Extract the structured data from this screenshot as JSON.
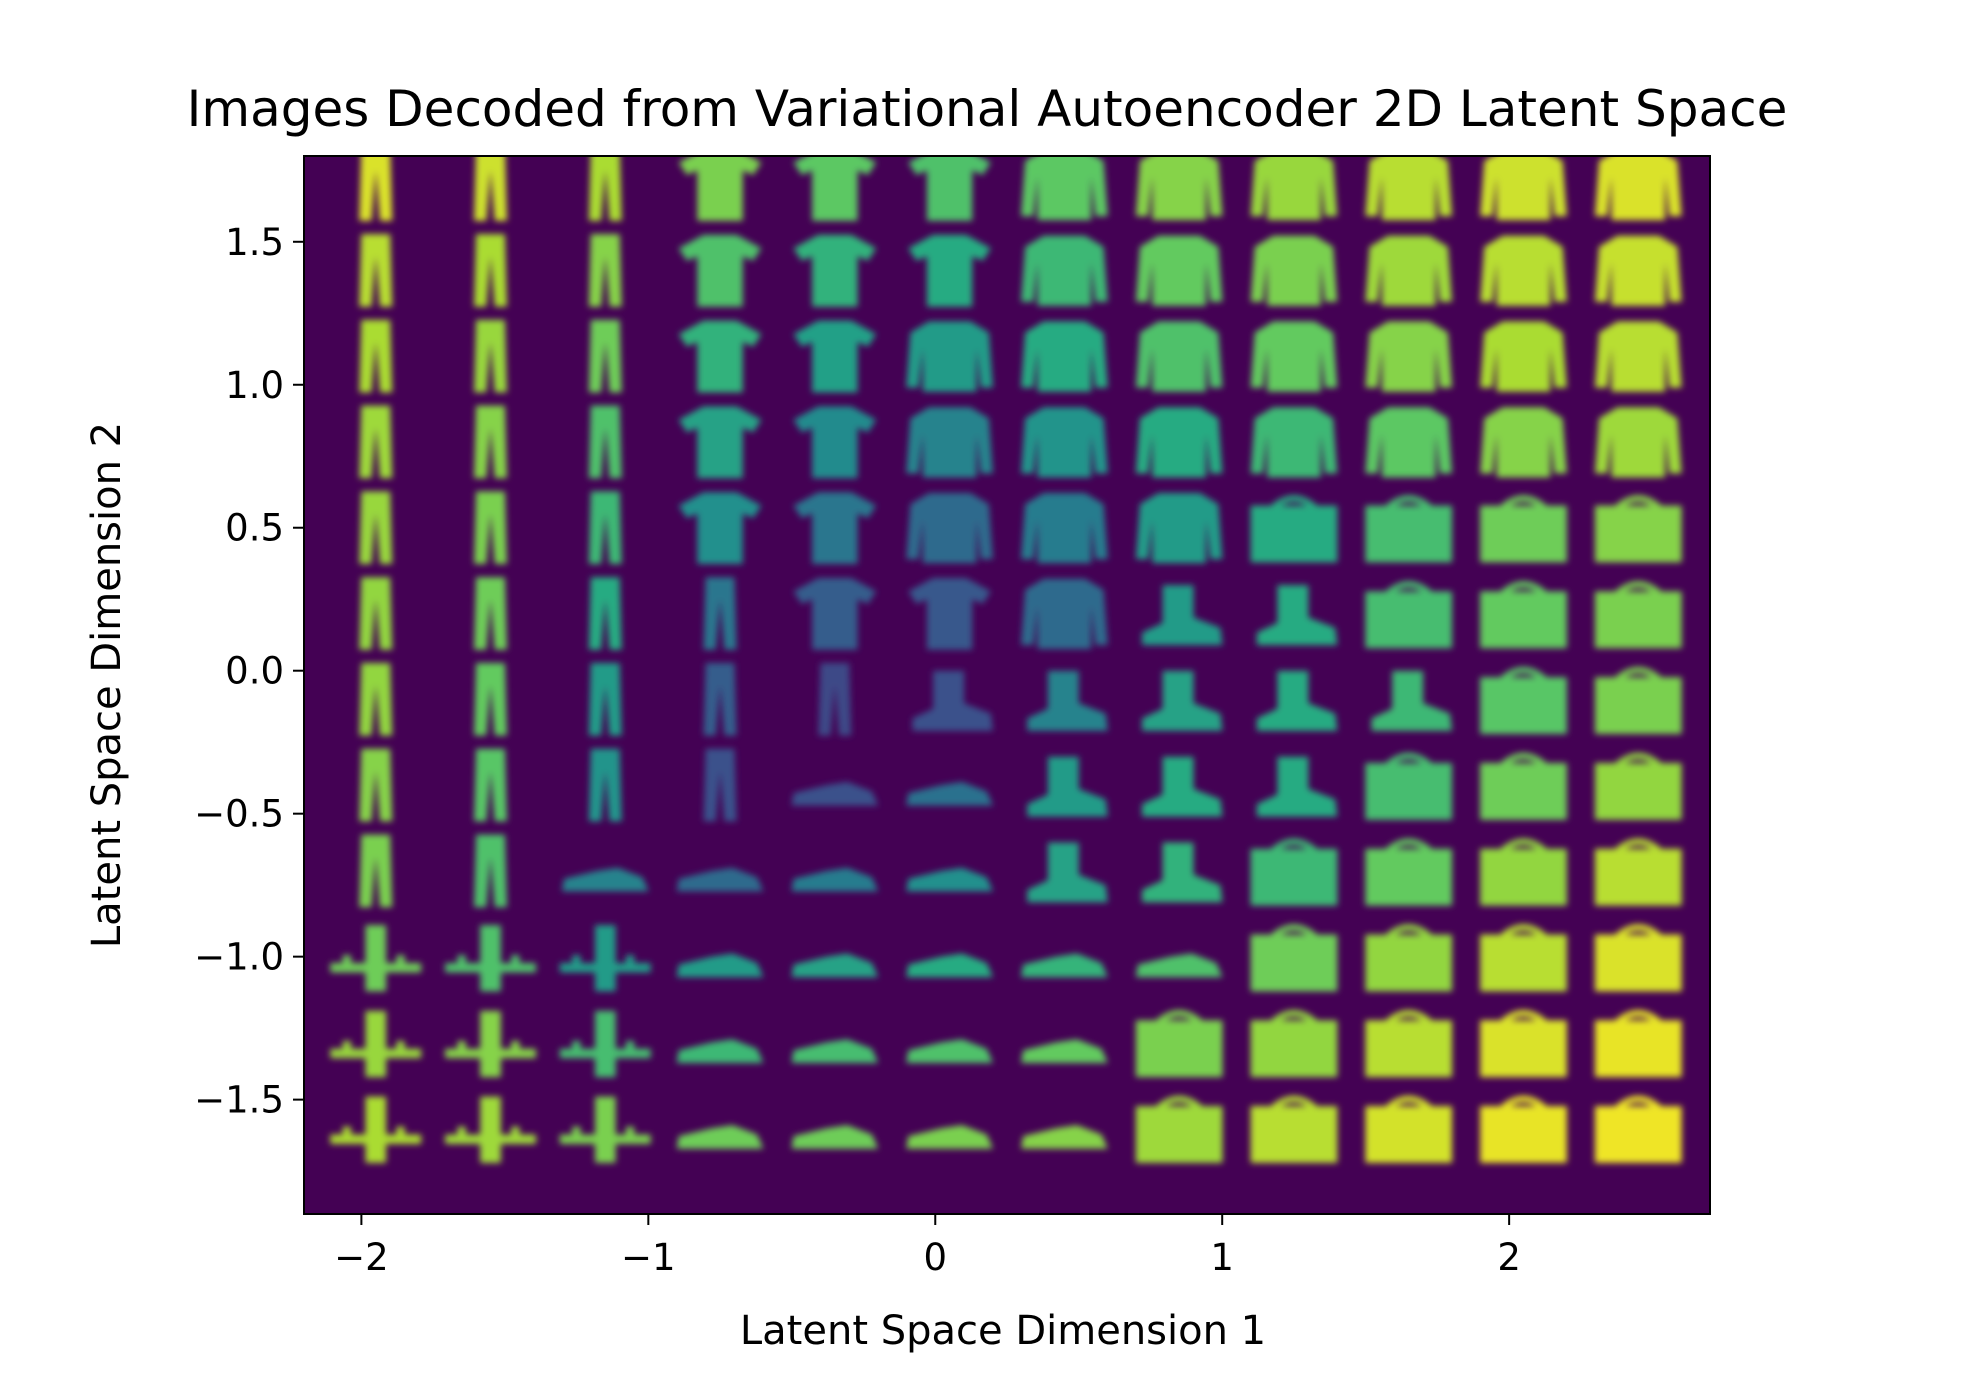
{
  "chart_data": {
    "type": "heatmap",
    "title": "Images Decoded from Variational Autoencoder 2D Latent Space",
    "xlabel": "Latent Space Dimension 1",
    "ylabel": "Latent Space Dimension 2",
    "xlim": [
      -2.2,
      2.7
    ],
    "ylim": [
      -1.9,
      1.8
    ],
    "xticks": [
      {
        "value": -2,
        "label": "−2"
      },
      {
        "value": -1,
        "label": "−1"
      },
      {
        "value": 0,
        "label": "0"
      },
      {
        "value": 1,
        "label": "1"
      },
      {
        "value": 2,
        "label": "2"
      }
    ],
    "yticks": [
      {
        "value": 1.5,
        "label": "1.5"
      },
      {
        "value": 1.0,
        "label": "1.0"
      },
      {
        "value": 0.5,
        "label": "0.5"
      },
      {
        "value": 0.0,
        "label": "0.0"
      },
      {
        "value": -0.5,
        "label": "−0.5"
      },
      {
        "value": -1.0,
        "label": "−1.0"
      },
      {
        "value": -1.5,
        "label": "−1.5"
      }
    ],
    "grid": false,
    "colormap": "viridis",
    "grid_x_centers": [
      -1.95,
      -1.55,
      -1.15,
      -0.75,
      -0.35,
      0.05,
      0.45,
      0.85,
      1.25,
      1.65,
      2.05,
      2.45
    ],
    "grid_y_centers": [
      1.7,
      1.4,
      1.1,
      0.8,
      0.5,
      0.2,
      -0.1,
      -0.4,
      -0.7,
      -1.0,
      -1.3,
      -1.6
    ],
    "cell_extent": {
      "x": 0.4,
      "y": 0.3
    },
    "decoded_classes": [
      [
        "trouser",
        "trouser",
        "trouser",
        "tshirt",
        "tshirt",
        "tshirt",
        "pullover",
        "pullover",
        "pullover",
        "pullover",
        "pullover",
        "pullover"
      ],
      [
        "trouser",
        "trouser",
        "trouser",
        "tshirt",
        "tshirt",
        "tshirt",
        "pullover",
        "pullover",
        "pullover",
        "pullover",
        "pullover",
        "pullover"
      ],
      [
        "trouser",
        "trouser",
        "trouser",
        "tshirt",
        "tshirt",
        "pullover",
        "pullover",
        "pullover",
        "pullover",
        "pullover",
        "pullover",
        "pullover"
      ],
      [
        "trouser",
        "trouser",
        "trouser",
        "tshirt",
        "tshirt",
        "pullover",
        "pullover",
        "pullover",
        "pullover",
        "pullover",
        "pullover",
        "pullover"
      ],
      [
        "trouser",
        "trouser",
        "trouser",
        "tshirt",
        "tshirt",
        "pullover",
        "pullover",
        "pullover",
        "bag",
        "bag",
        "bag",
        "bag"
      ],
      [
        "trouser",
        "trouser",
        "trouser",
        "trouser",
        "tshirt",
        "tshirt",
        "pullover",
        "boot",
        "boot",
        "bag",
        "bag",
        "bag"
      ],
      [
        "trouser",
        "trouser",
        "trouser",
        "trouser",
        "trouser",
        "boot",
        "boot",
        "boot",
        "boot",
        "boot",
        "bag",
        "bag"
      ],
      [
        "trouser",
        "trouser",
        "trouser",
        "trouser",
        "sneaker",
        "sneaker",
        "boot",
        "boot",
        "boot",
        "bag",
        "bag",
        "bag"
      ],
      [
        "trouser",
        "trouser",
        "sneaker",
        "sneaker",
        "sneaker",
        "sneaker",
        "boot",
        "boot",
        "bag",
        "bag",
        "bag",
        "bag"
      ],
      [
        "sandal",
        "sandal",
        "sandal",
        "sneaker",
        "sneaker",
        "sneaker",
        "sneaker",
        "sneaker",
        "bag",
        "bag",
        "bag",
        "bag"
      ],
      [
        "sandal",
        "sandal",
        "sandal",
        "sneaker",
        "sneaker",
        "sneaker",
        "sneaker",
        "bag",
        "bag",
        "bag",
        "bag",
        "bag"
      ],
      [
        "sandal",
        "sandal",
        "sandal",
        "sneaker",
        "sneaker",
        "sneaker",
        "sneaker",
        "bag",
        "bag",
        "bag",
        "bag",
        "bag"
      ]
    ],
    "intensity": [
      [
        0.95,
        0.93,
        0.88,
        0.8,
        0.75,
        0.72,
        0.75,
        0.82,
        0.85,
        0.9,
        0.93,
        0.95
      ],
      [
        0.9,
        0.88,
        0.82,
        0.72,
        0.65,
        0.62,
        0.68,
        0.76,
        0.8,
        0.86,
        0.9,
        0.92
      ],
      [
        0.88,
        0.85,
        0.78,
        0.65,
        0.57,
        0.55,
        0.62,
        0.72,
        0.76,
        0.82,
        0.88,
        0.9
      ],
      [
        0.86,
        0.82,
        0.72,
        0.58,
        0.48,
        0.45,
        0.52,
        0.62,
        0.68,
        0.75,
        0.82,
        0.86
      ],
      [
        0.85,
        0.8,
        0.68,
        0.5,
        0.4,
        0.35,
        0.42,
        0.55,
        0.62,
        0.7,
        0.78,
        0.82
      ],
      [
        0.84,
        0.78,
        0.62,
        0.4,
        0.3,
        0.28,
        0.35,
        0.55,
        0.62,
        0.7,
        0.76,
        0.8
      ],
      [
        0.84,
        0.76,
        0.55,
        0.3,
        0.22,
        0.25,
        0.45,
        0.58,
        0.62,
        0.68,
        0.74,
        0.8
      ],
      [
        0.82,
        0.74,
        0.52,
        0.25,
        0.25,
        0.38,
        0.55,
        0.62,
        0.62,
        0.7,
        0.78,
        0.84
      ],
      [
        0.8,
        0.72,
        0.45,
        0.35,
        0.42,
        0.5,
        0.58,
        0.65,
        0.68,
        0.76,
        0.84,
        0.9
      ],
      [
        0.78,
        0.72,
        0.55,
        0.55,
        0.58,
        0.62,
        0.66,
        0.72,
        0.78,
        0.84,
        0.9,
        0.95
      ],
      [
        0.85,
        0.82,
        0.7,
        0.68,
        0.7,
        0.72,
        0.76,
        0.8,
        0.84,
        0.9,
        0.95,
        0.97
      ],
      [
        0.88,
        0.86,
        0.8,
        0.78,
        0.78,
        0.8,
        0.82,
        0.86,
        0.9,
        0.94,
        0.97,
        0.98
      ]
    ]
  }
}
